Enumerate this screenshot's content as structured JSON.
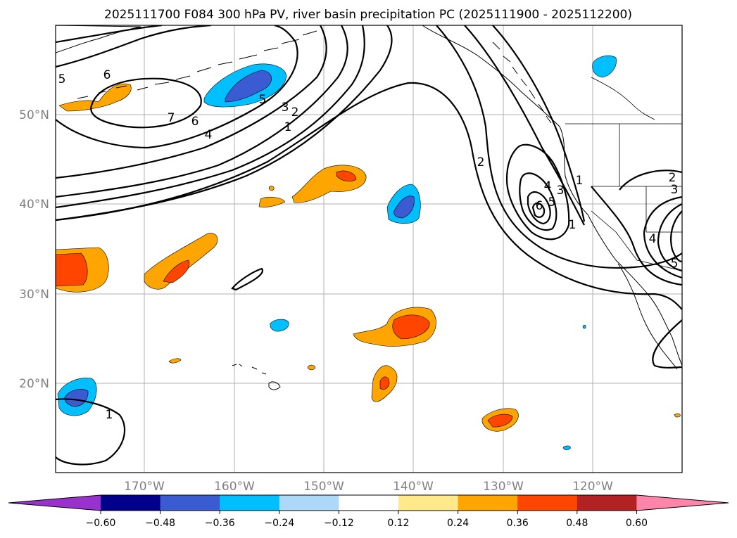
{
  "title": "2025111700 F084 300 hPa PV, river basin precipitation PC (2025111900 - 2025112200)",
  "map": {
    "lat_labels": [
      "50°N",
      "40°N",
      "30°N",
      "20°N"
    ],
    "lon_labels": [
      "170°W",
      "160°W",
      "150°W",
      "140°W",
      "130°W",
      "120°W"
    ]
  },
  "contour_labels": [
    "5",
    "6",
    "7",
    "6",
    "4",
    "5",
    "3",
    "2",
    "1",
    "2",
    "1",
    "4",
    "3",
    "6",
    "5",
    "1",
    "2",
    "3",
    "4",
    "5",
    "1"
  ],
  "colorbar": {
    "ticks": [
      "−0.60",
      "−0.48",
      "−0.36",
      "−0.24",
      "−0.12",
      "0.12",
      "0.24",
      "0.36",
      "0.48",
      "0.60"
    ],
    "colors": [
      "#9932cc",
      "#00008b",
      "#3a5bd1",
      "#00bfff",
      "#add8f7",
      "#ffffff",
      "#ffe98a",
      "#ffa500",
      "#ff4500",
      "#b22222",
      "#ff85aa"
    ]
  }
}
